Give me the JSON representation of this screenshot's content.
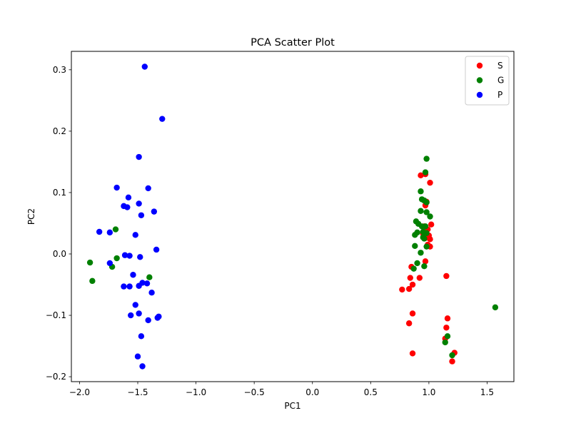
{
  "chart_data": {
    "type": "scatter",
    "title": "PCA Scatter Plot",
    "xlabel": "PC1",
    "ylabel": "PC2",
    "xlim": [
      -2.07,
      1.73
    ],
    "ylim": [
      -0.208,
      0.33
    ],
    "xticks": [
      -2.0,
      -1.5,
      -1.0,
      -0.5,
      0.0,
      0.5,
      1.0,
      1.5
    ],
    "xtick_labels": [
      "−2.0",
      "−1.5",
      "−1.0",
      "−0.5",
      "0.0",
      "0.5",
      "1.0",
      "1.5"
    ],
    "yticks": [
      -0.2,
      -0.1,
      0.0,
      0.1,
      0.2,
      0.3
    ],
    "ytick_labels": [
      "−0.2",
      "−0.1",
      "0.0",
      "0.1",
      "0.2",
      "0.3"
    ],
    "grid": false,
    "legend_position": "top-right",
    "series": [
      {
        "name": "S",
        "color": "#ff0000",
        "points": [
          [
            0.93,
            0.128
          ],
          [
            1.01,
            0.116
          ],
          [
            0.97,
            0.079
          ],
          [
            0.98,
            0.085
          ],
          [
            1.02,
            0.048
          ],
          [
            0.96,
            0.045
          ],
          [
            0.99,
            0.04
          ],
          [
            0.95,
            0.033
          ],
          [
            1.0,
            0.03
          ],
          [
            0.97,
            0.026
          ],
          [
            1.01,
            0.024
          ],
          [
            0.99,
            0.015
          ],
          [
            1.01,
            0.012
          ],
          [
            0.97,
            -0.012
          ],
          [
            0.85,
            -0.021
          ],
          [
            0.84,
            -0.039
          ],
          [
            0.92,
            -0.039
          ],
          [
            0.86,
            -0.05
          ],
          [
            0.83,
            -0.057
          ],
          [
            0.77,
            -0.058
          ],
          [
            1.15,
            -0.036
          ],
          [
            0.86,
            -0.097
          ],
          [
            0.83,
            -0.113
          ],
          [
            1.16,
            -0.105
          ],
          [
            1.15,
            -0.12
          ],
          [
            1.14,
            -0.138
          ],
          [
            0.86,
            -0.162
          ],
          [
            1.22,
            -0.161
          ],
          [
            1.2,
            -0.175
          ],
          [
            0.97,
            0.13
          ]
        ]
      },
      {
        "name": "G",
        "color": "#008000",
        "points": [
          [
            0.98,
            0.155
          ],
          [
            0.97,
            0.133
          ],
          [
            0.93,
            0.102
          ],
          [
            0.94,
            0.089
          ],
          [
            0.96,
            0.087
          ],
          [
            0.98,
            0.084
          ],
          [
            0.93,
            0.07
          ],
          [
            0.98,
            0.068
          ],
          [
            1.01,
            0.061
          ],
          [
            0.89,
            0.053
          ],
          [
            0.91,
            0.049
          ],
          [
            0.94,
            0.045
          ],
          [
            0.97,
            0.045
          ],
          [
            0.9,
            0.035
          ],
          [
            0.95,
            0.036
          ],
          [
            0.98,
            0.034
          ],
          [
            0.88,
            0.031
          ],
          [
            0.95,
            0.027
          ],
          [
            0.96,
            0.025
          ],
          [
            0.88,
            0.013
          ],
          [
            0.93,
            0.002
          ],
          [
            0.98,
            0.012
          ],
          [
            0.9,
            -0.015
          ],
          [
            0.87,
            -0.024
          ],
          [
            0.96,
            -0.02
          ],
          [
            1.57,
            -0.087
          ],
          [
            1.16,
            -0.134
          ],
          [
            1.14,
            -0.144
          ],
          [
            1.2,
            -0.165
          ],
          [
            -1.91,
            -0.014
          ],
          [
            -1.89,
            -0.044
          ],
          [
            -1.69,
            0.04
          ],
          [
            -1.68,
            -0.007
          ],
          [
            -1.72,
            -0.021
          ],
          [
            -1.4,
            -0.038
          ]
        ]
      },
      {
        "name": "P",
        "color": "#0000ff",
        "points": [
          [
            -1.44,
            0.305
          ],
          [
            -1.29,
            0.22
          ],
          [
            -1.49,
            0.158
          ],
          [
            -1.68,
            0.108
          ],
          [
            -1.41,
            0.107
          ],
          [
            -1.58,
            0.092
          ],
          [
            -1.49,
            0.082
          ],
          [
            -1.62,
            0.078
          ],
          [
            -1.59,
            0.076
          ],
          [
            -1.36,
            0.069
          ],
          [
            -1.47,
            0.063
          ],
          [
            -1.83,
            0.036
          ],
          [
            -1.74,
            0.035
          ],
          [
            -1.52,
            0.031
          ],
          [
            -1.34,
            0.007
          ],
          [
            -1.61,
            -0.002
          ],
          [
            -1.57,
            -0.003
          ],
          [
            -1.48,
            -0.005
          ],
          [
            -1.74,
            -0.015
          ],
          [
            -1.54,
            -0.034
          ],
          [
            -1.46,
            -0.047
          ],
          [
            -1.42,
            -0.048
          ],
          [
            -1.49,
            -0.052
          ],
          [
            -1.62,
            -0.053
          ],
          [
            -1.57,
            -0.053
          ],
          [
            -1.38,
            -0.063
          ],
          [
            -1.52,
            -0.083
          ],
          [
            -1.56,
            -0.1
          ],
          [
            -1.49,
            -0.097
          ],
          [
            -1.32,
            -0.102
          ],
          [
            -1.33,
            -0.104
          ],
          [
            -1.41,
            -0.108
          ],
          [
            -1.47,
            -0.134
          ],
          [
            -1.5,
            -0.167
          ],
          [
            -1.46,
            -0.183
          ]
        ]
      }
    ]
  }
}
